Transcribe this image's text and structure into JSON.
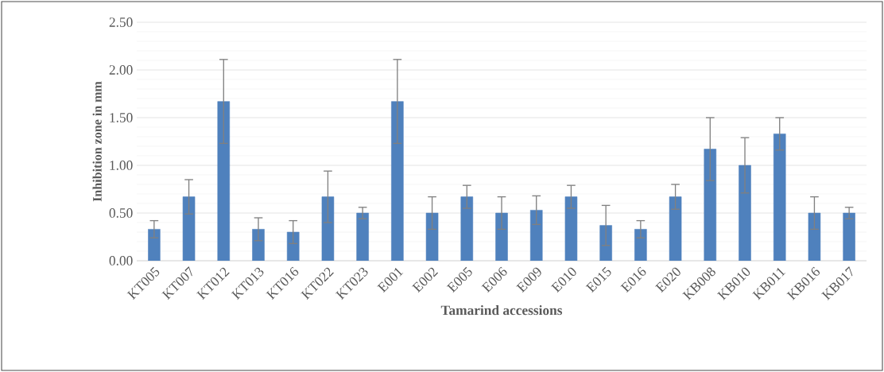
{
  "chart_data": {
    "type": "bar",
    "xlabel": "Tamarind accessions",
    "ylabel": "Inhibition zone in mm",
    "categories": [
      "KT005",
      "KT007",
      "KT012",
      "KT013",
      "KT016",
      "KT022",
      "KT023",
      "E001",
      "E002",
      "E005",
      "E006",
      "E009",
      "E010",
      "E015",
      "E016",
      "E020",
      "KB008",
      "KB010",
      "KB011",
      "KB016",
      "KB017"
    ],
    "values": [
      0.33,
      0.67,
      1.67,
      0.33,
      0.3,
      0.67,
      0.5,
      1.67,
      0.5,
      0.67,
      0.5,
      0.53,
      0.67,
      0.37,
      0.33,
      0.67,
      1.17,
      1.0,
      1.33,
      0.5,
      0.5
    ],
    "errors": [
      0.09,
      0.18,
      0.44,
      0.12,
      0.12,
      0.27,
      0.06,
      0.44,
      0.17,
      0.12,
      0.17,
      0.15,
      0.12,
      0.21,
      0.09,
      0.13,
      0.33,
      0.29,
      0.17,
      0.17,
      0.06
    ],
    "color": "#4f81bd",
    "ylim": [
      0,
      2.5
    ],
    "yticks": [
      {
        "value": 0,
        "label": "0.00"
      },
      {
        "value": 0.5,
        "label": "0.50"
      },
      {
        "value": 1,
        "label": "1.00"
      },
      {
        "value": 1.5,
        "label": "1.50"
      },
      {
        "value": 2,
        "label": "2.00"
      },
      {
        "value": 2.5,
        "label": "2.50"
      }
    ],
    "grid": "y"
  }
}
